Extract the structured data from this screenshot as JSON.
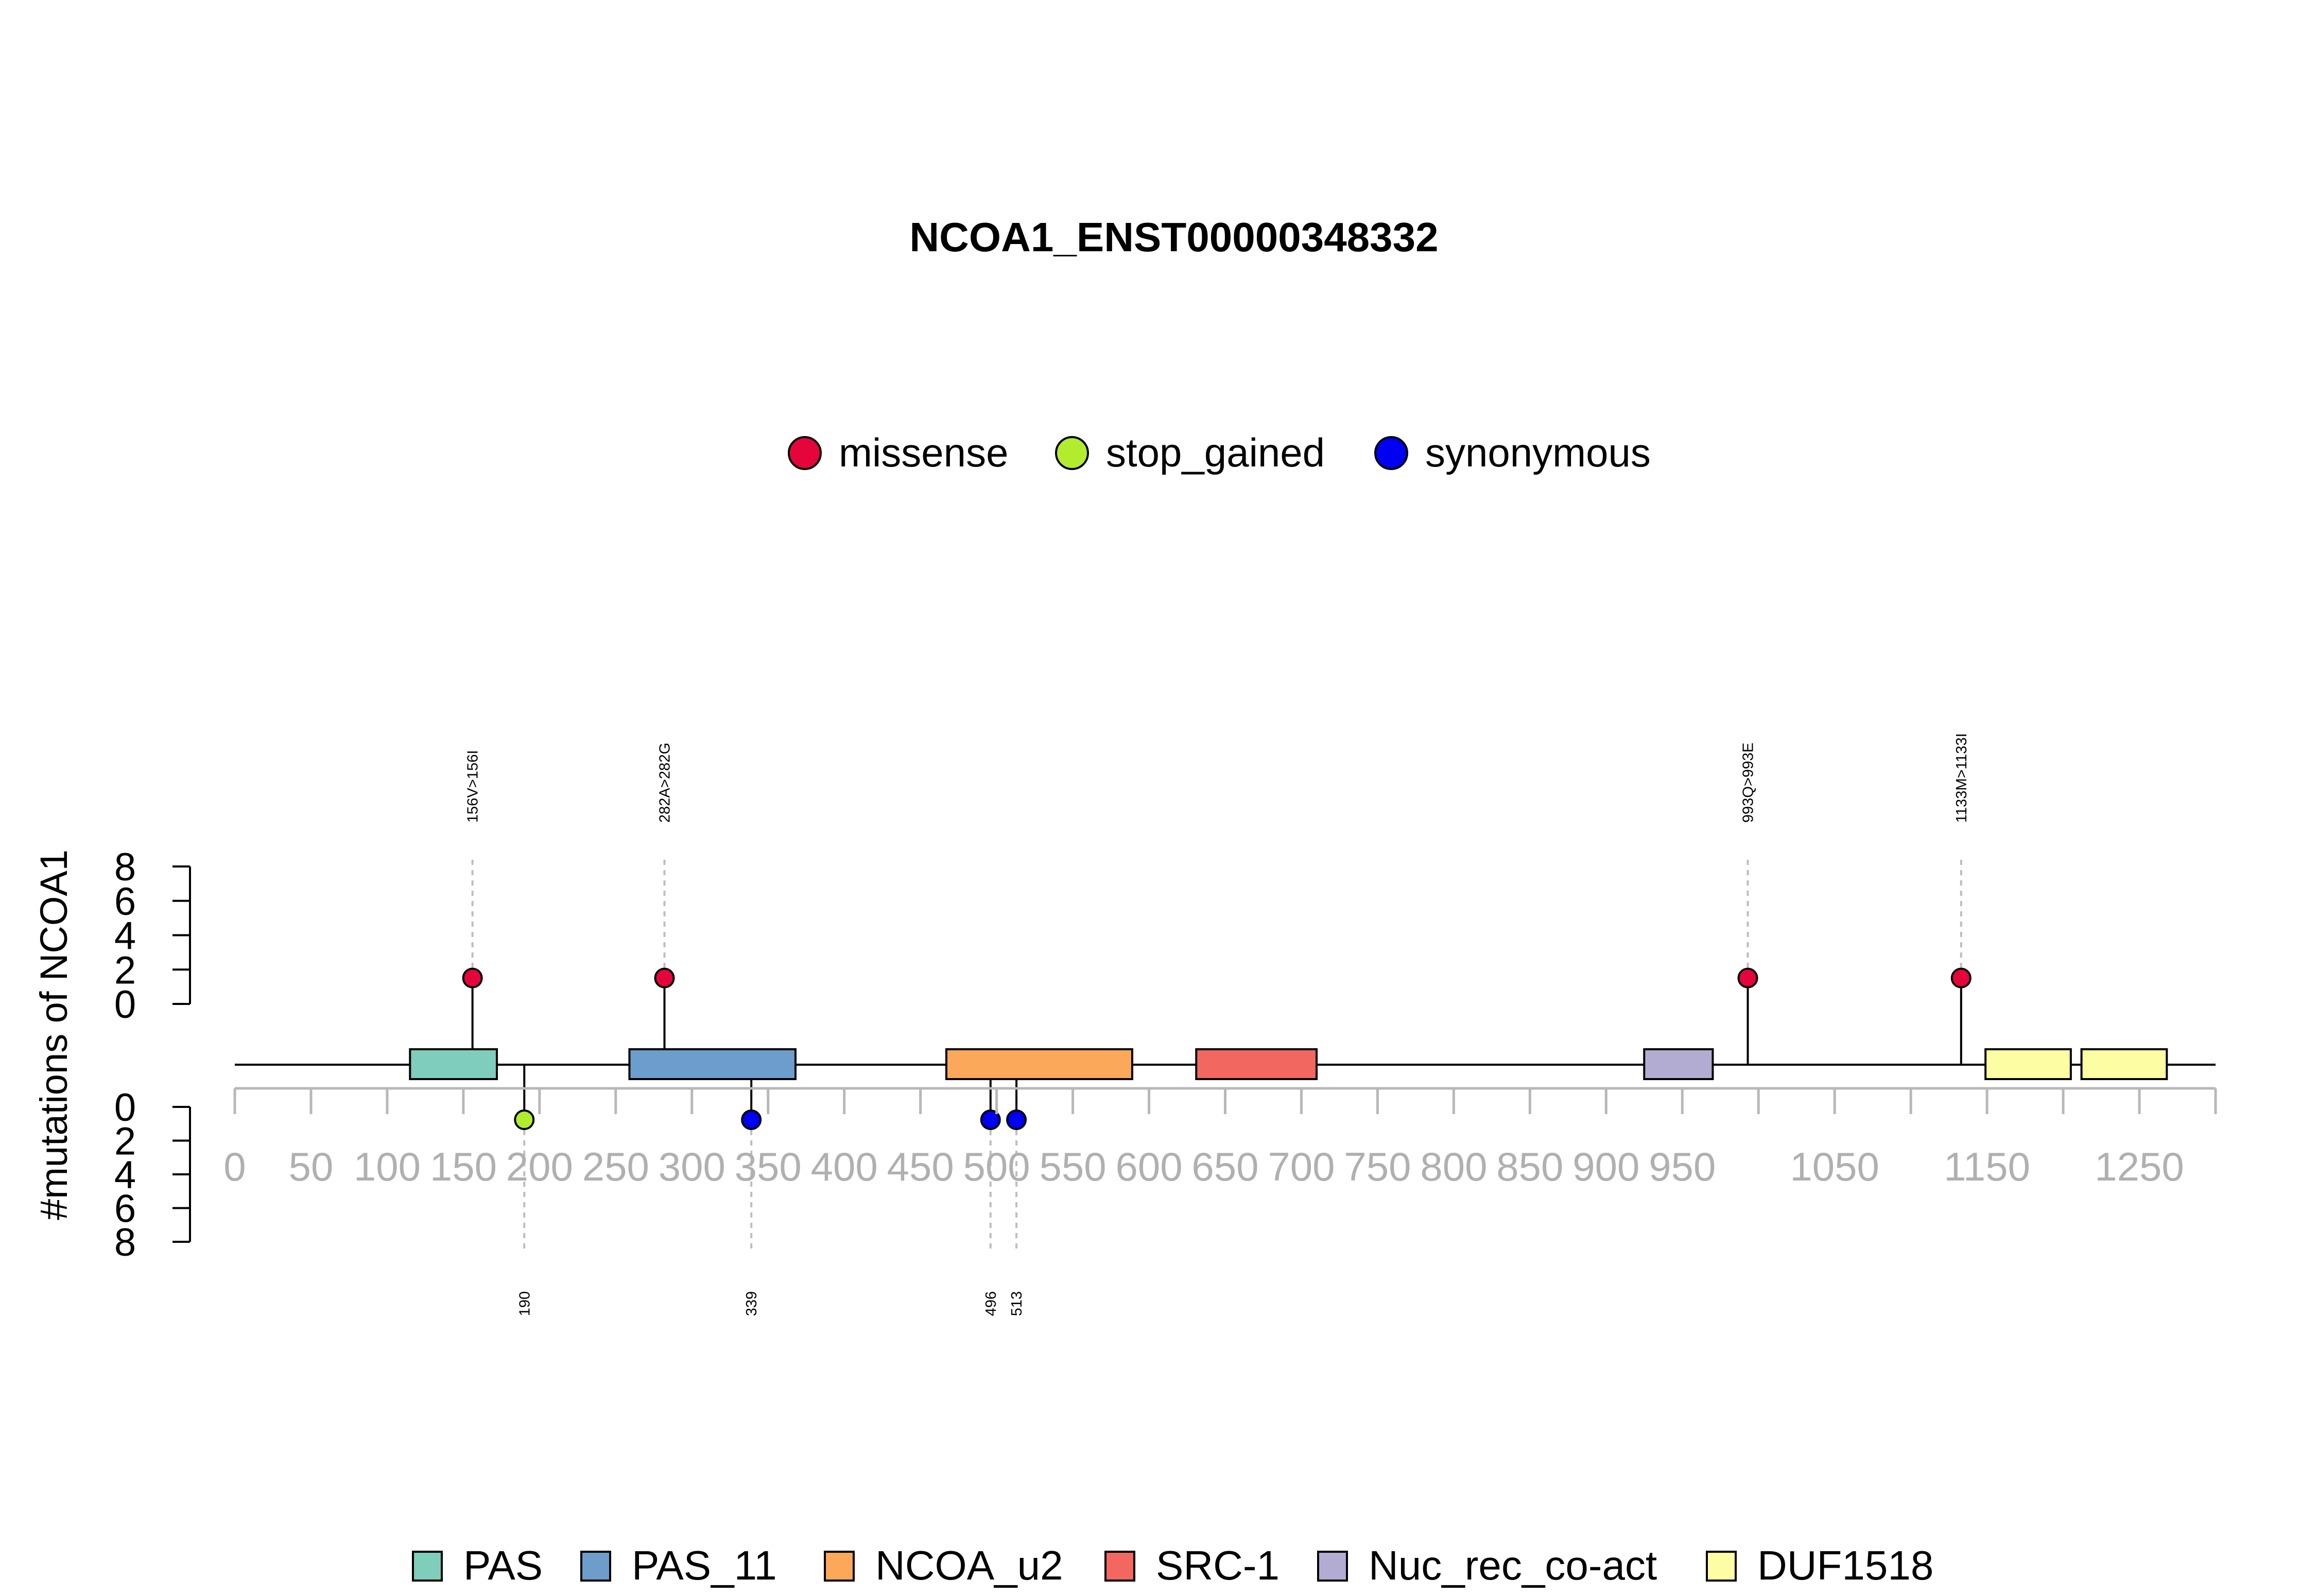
{
  "chart_data": {
    "type": "lollipop",
    "title": "NCOA1_ENST00000348332",
    "ylabel": "#mutations of NCOA1",
    "protein_length": 1300,
    "xlim": [
      0,
      1300
    ],
    "x_ticks": [
      0,
      50,
      100,
      150,
      200,
      250,
      300,
      350,
      400,
      450,
      500,
      550,
      600,
      650,
      700,
      750,
      800,
      850,
      900,
      950,
      1000,
      1050,
      1100,
      1150,
      1200,
      1250,
      1300
    ],
    "x_tick_labels": [
      {
        "pos": 0,
        "label": "0"
      },
      {
        "pos": 50,
        "label": "50"
      },
      {
        "pos": 100,
        "label": "100"
      },
      {
        "pos": 150,
        "label": "150"
      },
      {
        "pos": 200,
        "label": "200"
      },
      {
        "pos": 250,
        "label": "250"
      },
      {
        "pos": 300,
        "label": "300"
      },
      {
        "pos": 350,
        "label": "350"
      },
      {
        "pos": 400,
        "label": "400"
      },
      {
        "pos": 450,
        "label": "450"
      },
      {
        "pos": 500,
        "label": "500"
      },
      {
        "pos": 550,
        "label": "550"
      },
      {
        "pos": 600,
        "label": "600"
      },
      {
        "pos": 650,
        "label": "650"
      },
      {
        "pos": 700,
        "label": "700"
      },
      {
        "pos": 750,
        "label": "750"
      },
      {
        "pos": 800,
        "label": "800"
      },
      {
        "pos": 850,
        "label": "850"
      },
      {
        "pos": 900,
        "label": "900"
      },
      {
        "pos": 950,
        "label": "950"
      },
      {
        "pos": 1050,
        "label": "1050"
      },
      {
        "pos": 1150,
        "label": "1150"
      },
      {
        "pos": 1250,
        "label": "1250"
      }
    ],
    "y_ticks_top": [
      "0",
      "2",
      "4",
      "6",
      "8"
    ],
    "y_ticks_bottom": [
      "0",
      "2",
      "4",
      "6",
      "8"
    ],
    "ylim": [
      0,
      8
    ],
    "mutation_types": [
      {
        "name": "missense",
        "color": "#E5053A"
      },
      {
        "name": "stop_gained",
        "color": "#B2EC2E"
      },
      {
        "name": "synonymous",
        "color": "#0000F2"
      }
    ],
    "mutations_top": [
      {
        "pos": 156,
        "count": 1,
        "type": "missense",
        "label": "156V>156I"
      },
      {
        "pos": 282,
        "count": 1,
        "type": "missense",
        "label": "282A>282G"
      },
      {
        "pos": 993,
        "count": 1,
        "type": "missense",
        "label": "993Q>993E"
      },
      {
        "pos": 1133,
        "count": 1,
        "type": "missense",
        "label": "1133M>1133I"
      }
    ],
    "mutations_bottom": [
      {
        "pos": 190,
        "count": 1,
        "type": "stop_gained",
        "label": "190"
      },
      {
        "pos": 339,
        "count": 1,
        "type": "synonymous",
        "label": "339"
      },
      {
        "pos": 496,
        "count": 1,
        "type": "synonymous",
        "label": "496"
      },
      {
        "pos": 513,
        "count": 1,
        "type": "synonymous",
        "label": "513"
      }
    ],
    "domains": [
      {
        "name": "PAS",
        "start": 115,
        "end": 172,
        "color": "#7FCDBB"
      },
      {
        "name": "PAS_11",
        "start": 259,
        "end": 368,
        "color": "#6C9DCB"
      },
      {
        "name": "NCOA_u2",
        "start": 467,
        "end": 589,
        "color": "#FBA85B"
      },
      {
        "name": "SRC-1",
        "start": 631,
        "end": 710,
        "color": "#F2675F"
      },
      {
        "name": "Nuc_rec_co-act",
        "start": 925,
        "end": 970,
        "color": "#B2ACD2"
      },
      {
        "name": "DUF1518",
        "start": 1149,
        "end": 1205,
        "color": "#FDFDA3"
      },
      {
        "name": "DUF1518",
        "start": 1212,
        "end": 1268,
        "color": "#FDFDA3"
      }
    ],
    "domain_legend": [
      {
        "name": "PAS",
        "color": "#7FCDBB"
      },
      {
        "name": "PAS_11",
        "color": "#6C9DCB"
      },
      {
        "name": "NCOA_u2",
        "color": "#FBA85B"
      },
      {
        "name": "SRC-1",
        "color": "#F2675F"
      },
      {
        "name": "Nuc_rec_co-act",
        "color": "#B2ACD2"
      },
      {
        "name": "DUF1518",
        "color": "#FDFDA3"
      }
    ],
    "legend_position": "top",
    "domain_legend_position": "bottom"
  }
}
